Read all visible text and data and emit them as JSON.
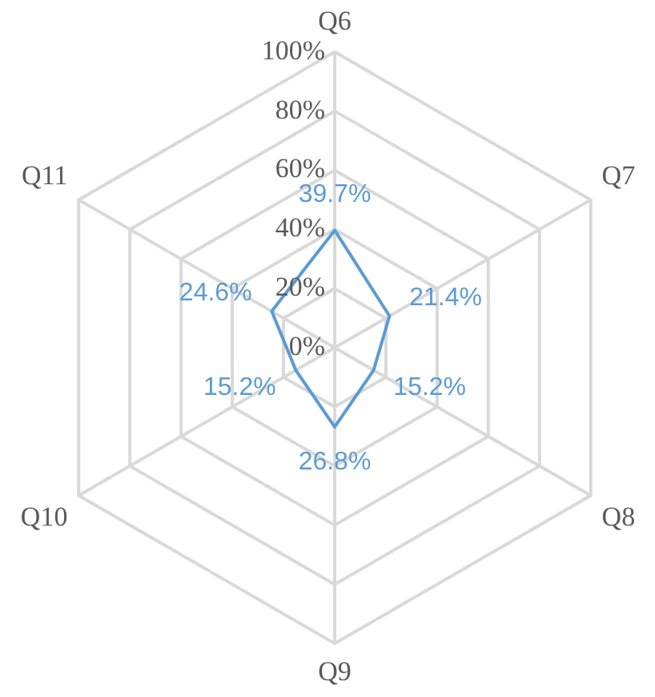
{
  "chart_data": {
    "type": "radar",
    "categories": [
      "Q6",
      "Q7",
      "Q8",
      "Q9",
      "Q10",
      "Q11"
    ],
    "series": [
      {
        "color": "#5b9bd5",
        "values": [
          39.7,
          21.4,
          15.2,
          26.8,
          15.2,
          24.6
        ],
        "value_labels": [
          "39.7%",
          "21.4%",
          "15.2%",
          "26.8%",
          "15.2%",
          "24.6%"
        ]
      }
    ],
    "ylim": [
      0,
      100
    ],
    "yticks": [
      {
        "value": 0,
        "label": "0%"
      },
      {
        "value": 20,
        "label": "20%"
      },
      {
        "value": 40,
        "label": "40%"
      },
      {
        "value": 60,
        "label": "60%"
      },
      {
        "value": 80,
        "label": "80%"
      },
      {
        "value": 100,
        "label": "100%"
      }
    ],
    "grid": true,
    "legend": false,
    "marker": "none",
    "line_style": "solid"
  }
}
